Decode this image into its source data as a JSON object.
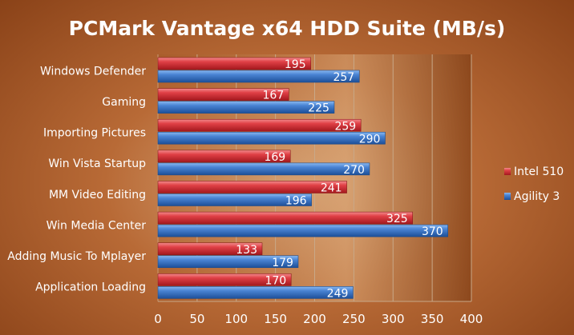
{
  "chart_data": {
    "type": "bar",
    "orientation": "horizontal",
    "title": "PCMark Vantage x64 HDD Suite (MB/s)",
    "categories": [
      "Windows Defender",
      "Gaming",
      "Importing Pictures",
      "Win Vista Startup",
      "MM Video Editing",
      "Win Media Center",
      "Adding Music To Mplayer",
      "Application Loading"
    ],
    "series": [
      {
        "name": "Intel 510",
        "color": "#d9363a",
        "values": [
          195,
          167,
          259,
          169,
          241,
          325,
          133,
          170
        ]
      },
      {
        "name": "Agility 3",
        "color": "#3a78c9",
        "values": [
          257,
          225,
          290,
          270,
          196,
          370,
          179,
          249
        ]
      }
    ],
    "xlim": [
      0,
      400
    ],
    "xticks": [
      "0",
      "50",
      "100",
      "150",
      "200",
      "250",
      "300",
      "350",
      "400"
    ],
    "grid": true,
    "legend": "right"
  }
}
